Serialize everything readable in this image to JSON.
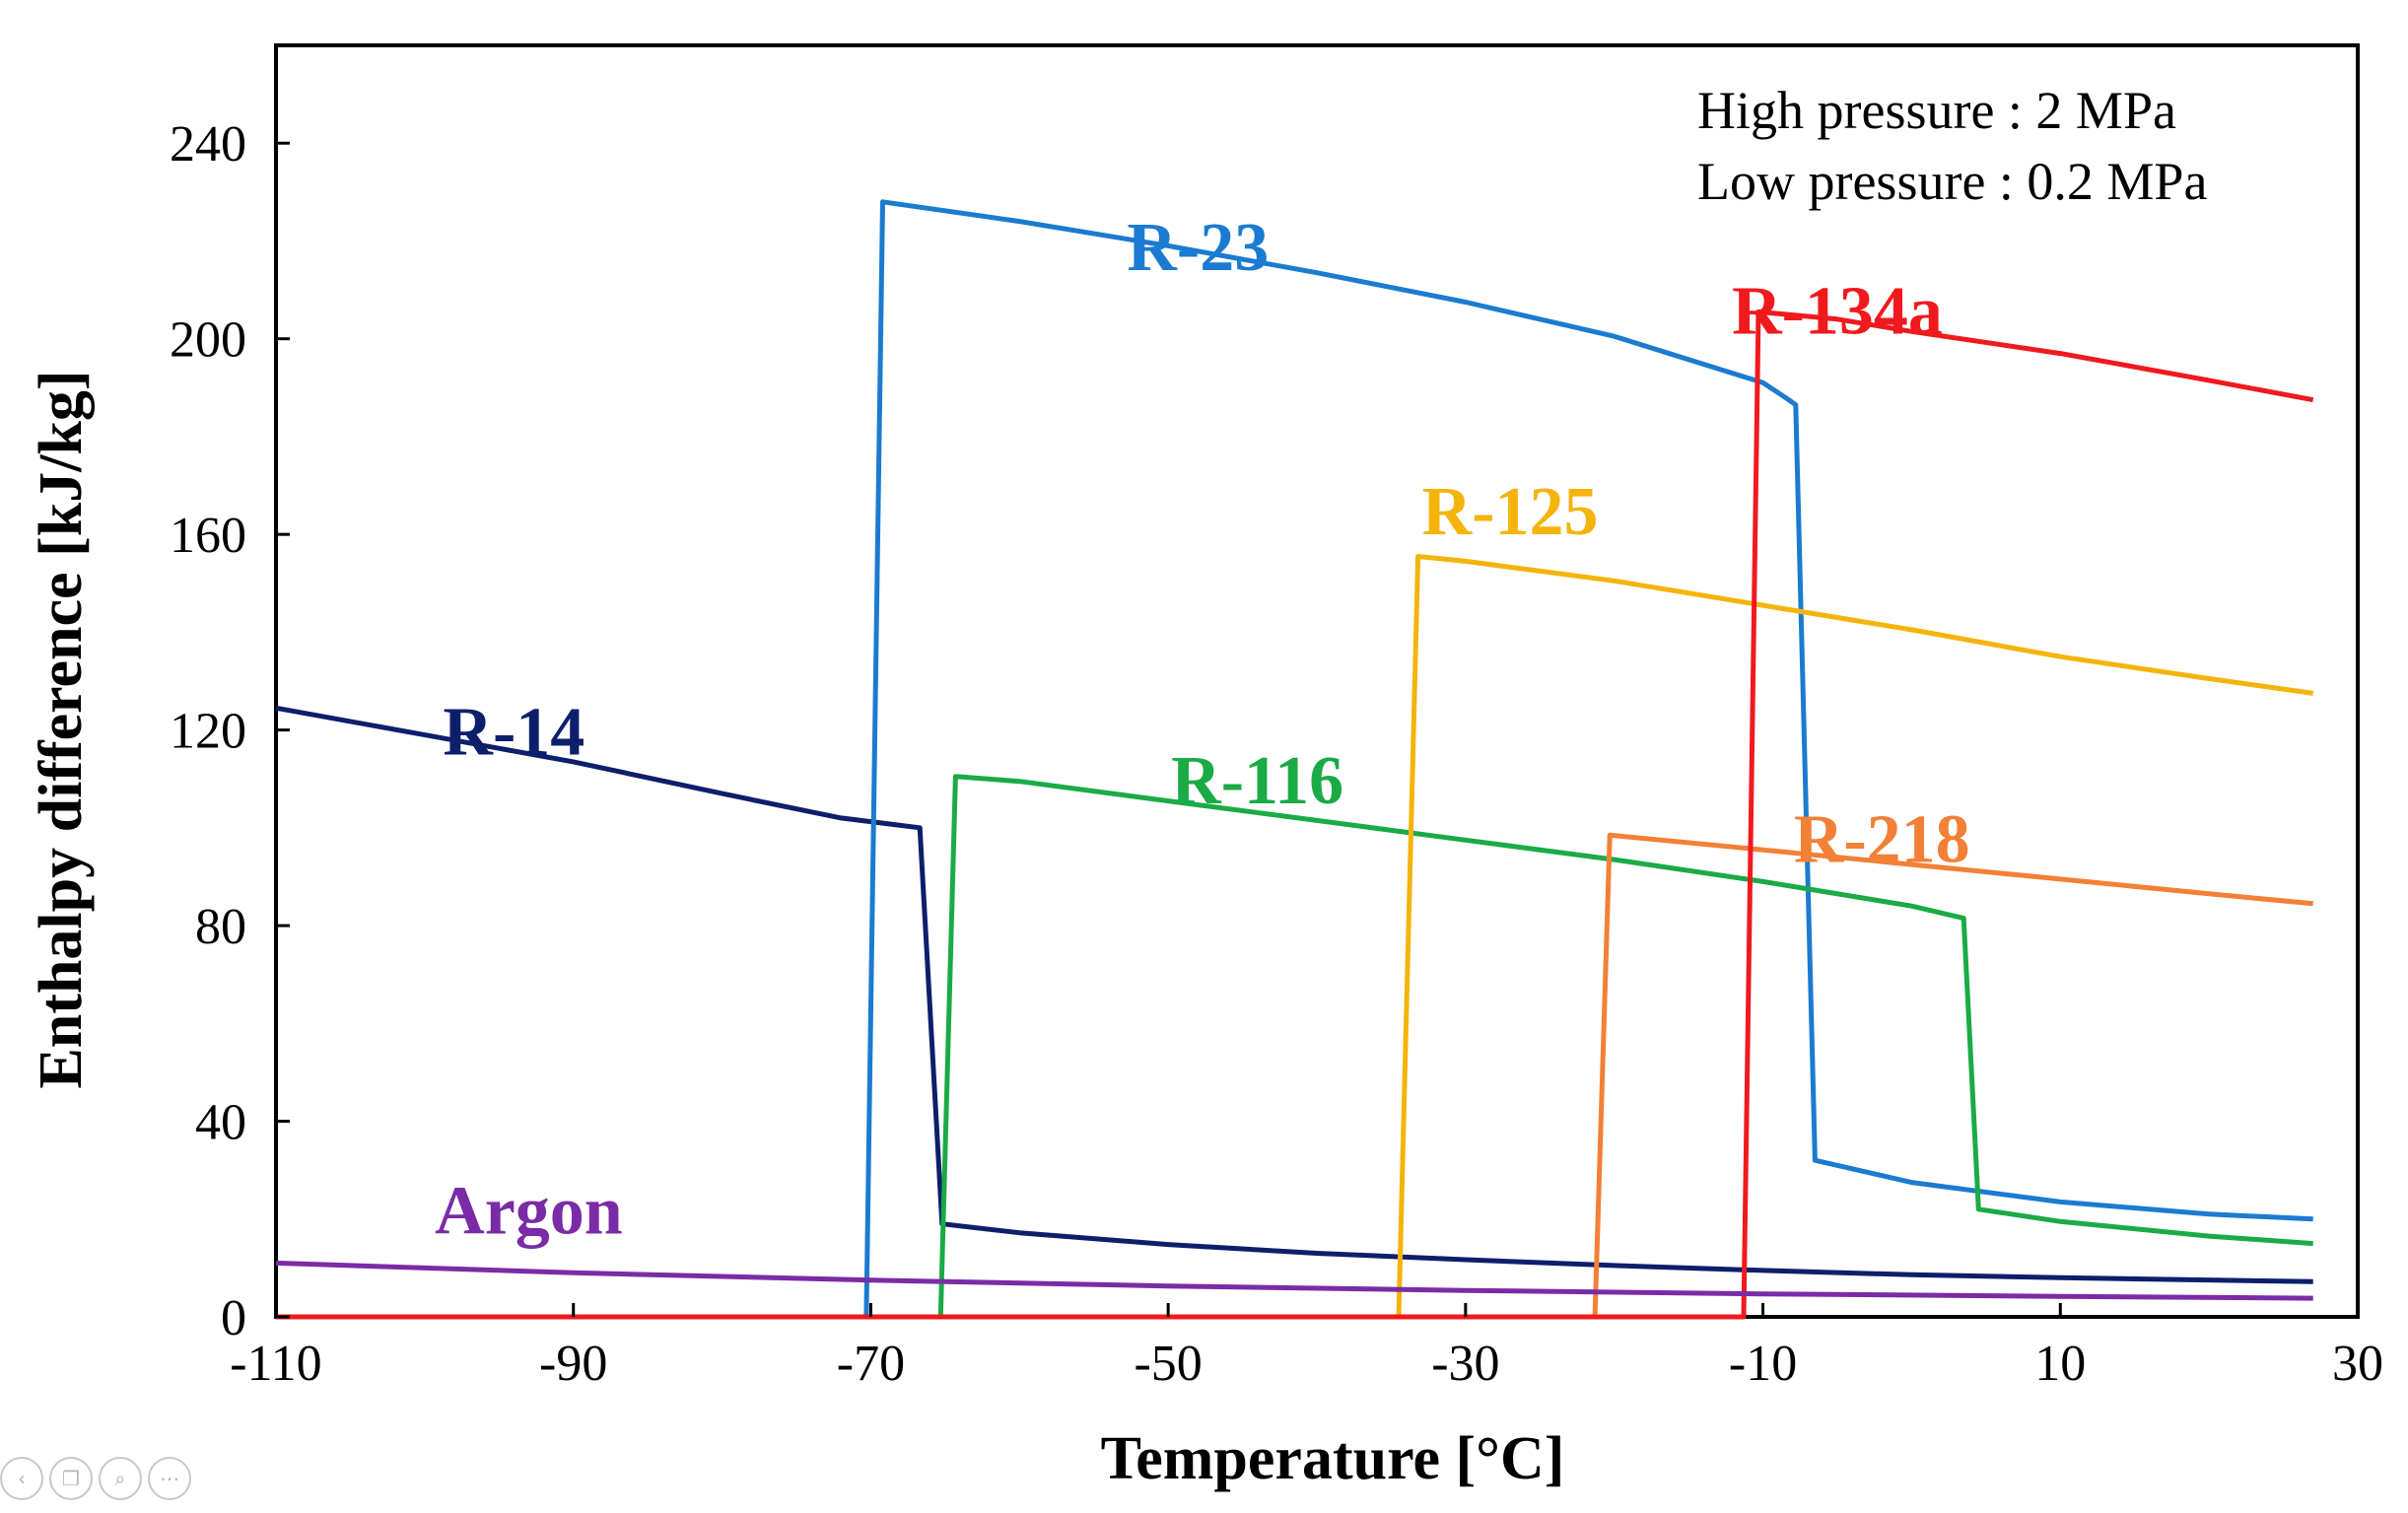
{
  "chart_data": {
    "type": "line",
    "title": "",
    "xlabel": "Temperature [°C]",
    "ylabel": "Enthalpy difference [kJ/kg]",
    "xlim": [
      -110,
      30
    ],
    "ylim": [
      0,
      260
    ],
    "xticks": [
      -110,
      -90,
      -70,
      -50,
      -30,
      -10,
      10,
      30
    ],
    "yticks": [
      0,
      40,
      80,
      120,
      160,
      200,
      240
    ],
    "grid": false,
    "annotations": [
      "High pressure : 2 MPa",
      "Low pressure : 0.2 MPa"
    ],
    "series": [
      {
        "name": "R-14",
        "color": "#0d1f6b",
        "label_at": [
          -94,
          115
        ],
        "points": [
          [
            -110,
            124.5
          ],
          [
            -100,
            119
          ],
          [
            -90,
            113.5
          ],
          [
            -80,
            107
          ],
          [
            -72,
            102
          ],
          [
            -66.7,
            100
          ],
          [
            -65.2,
            19
          ],
          [
            -60,
            17.2
          ],
          [
            -50,
            14.8
          ],
          [
            -40,
            13
          ],
          [
            -30,
            11.7
          ],
          [
            -20,
            10.5
          ],
          [
            -10,
            9.5
          ],
          [
            0,
            8.6
          ],
          [
            10,
            8
          ],
          [
            27,
            7.2
          ]
        ]
      },
      {
        "name": "R-23",
        "color": "#1b7bd0",
        "label_at": [
          -48,
          214
        ],
        "points": [
          [
            -70.3,
            0
          ],
          [
            -69.2,
            228
          ],
          [
            -60,
            224
          ],
          [
            -50,
            219
          ],
          [
            -40,
            213.5
          ],
          [
            -30,
            207.5
          ],
          [
            -20,
            200.5
          ],
          [
            -10,
            191
          ],
          [
            -8.5,
            188
          ],
          [
            -7.8,
            186.5
          ],
          [
            -6.5,
            32
          ],
          [
            0,
            27.5
          ],
          [
            10,
            23.5
          ],
          [
            20,
            21
          ],
          [
            27,
            20
          ]
        ]
      },
      {
        "name": "R-116",
        "color": "#1aab46",
        "label_at": [
          -44,
          105
        ],
        "points": [
          [
            -65.3,
            0
          ],
          [
            -64.3,
            110.5
          ],
          [
            -60,
            109.5
          ],
          [
            -50,
            105.5
          ],
          [
            -40,
            101.5
          ],
          [
            -30,
            97.5
          ],
          [
            -20,
            93.5
          ],
          [
            -10,
            89
          ],
          [
            0,
            84
          ],
          [
            3.5,
            81.5
          ],
          [
            4.5,
            22
          ],
          [
            10,
            19.5
          ],
          [
            20,
            16.5
          ],
          [
            27,
            15
          ]
        ]
      },
      {
        "name": "R-125",
        "color": "#f5b40b",
        "label_at": [
          -27,
          160
        ],
        "points": [
          [
            -34.5,
            0
          ],
          [
            -33.2,
            155.5
          ],
          [
            -30,
            154.5
          ],
          [
            -20,
            150.5
          ],
          [
            -10,
            145.5
          ],
          [
            0,
            140.5
          ],
          [
            10,
            135
          ],
          [
            20,
            130.5
          ],
          [
            27,
            127.5
          ]
        ]
      },
      {
        "name": "R-218",
        "color": "#f28036",
        "label_at": [
          -2,
          93
        ],
        "points": [
          [
            -21.3,
            0
          ],
          [
            -20.3,
            98.5
          ],
          [
            -10,
            95.5
          ],
          [
            0,
            92.5
          ],
          [
            10,
            89.5
          ],
          [
            20,
            86.5
          ],
          [
            27,
            84.5
          ]
        ]
      },
      {
        "name": "R-134a",
        "color": "#f01a1e",
        "label_at": [
          -5,
          201
        ],
        "points": [
          [
            -11.3,
            0
          ],
          [
            -10.3,
            205.5
          ],
          [
            -5,
            204
          ],
          [
            0,
            201.5
          ],
          [
            10,
            197
          ],
          [
            20,
            191.5
          ],
          [
            27,
            187.5
          ]
        ]
      },
      {
        "name": "Argon",
        "color": "#7a2ba6",
        "label_at": [
          -93,
          17
        ],
        "points": [
          [
            -110,
            11
          ],
          [
            -90,
            9
          ],
          [
            -70,
            7.5
          ],
          [
            -50,
            6.3
          ],
          [
            -30,
            5.4
          ],
          [
            -10,
            4.7
          ],
          [
            10,
            4.2
          ],
          [
            27,
            3.8
          ]
        ]
      }
    ]
  }
}
